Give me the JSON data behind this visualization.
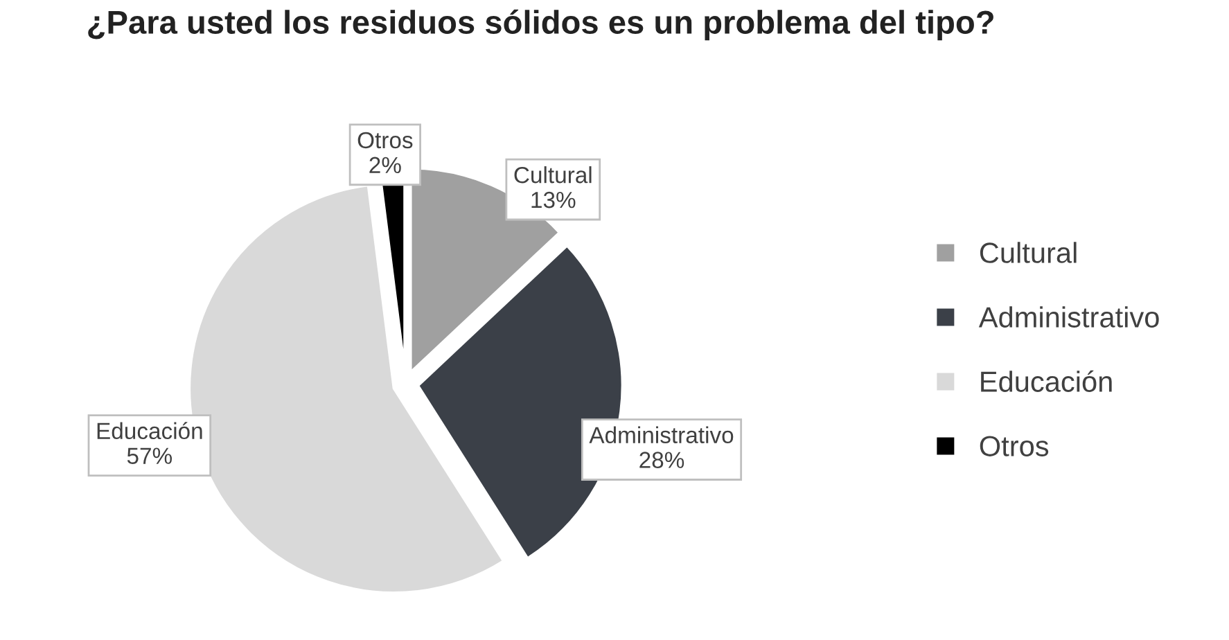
{
  "chart_data": {
    "type": "pie",
    "title": "¿Para usted los residuos sólidos es un problema del tipo?",
    "categories": [
      "Cultural",
      "Administrativo",
      "Educación",
      "Otros"
    ],
    "values": [
      13,
      28,
      57,
      2
    ],
    "value_labels": [
      "13%",
      "28%",
      "57%",
      "2%"
    ],
    "colors": [
      "#a0a0a0",
      "#3b4048",
      "#d9d9d9",
      "#000000"
    ],
    "legend": "right"
  }
}
